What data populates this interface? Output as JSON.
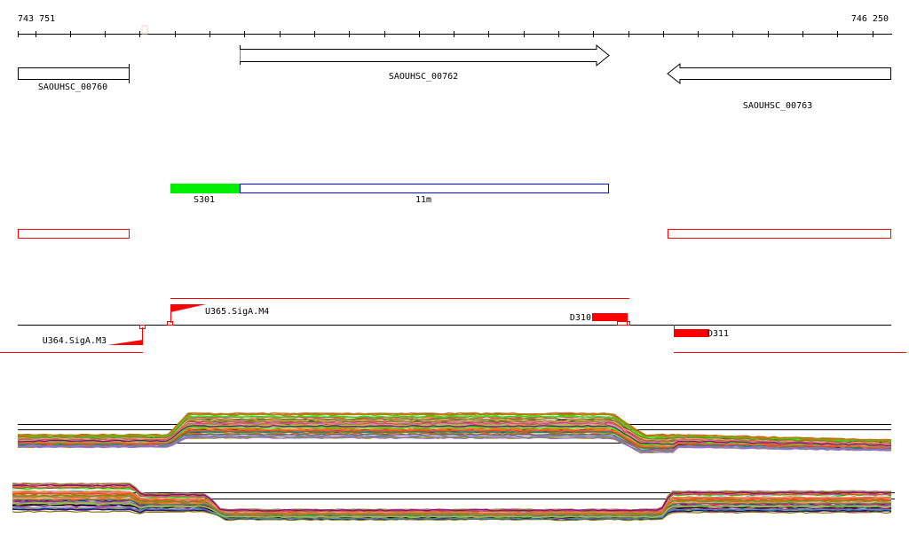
{
  "ruler": {
    "start_label": "743 751",
    "end_label": "746 250"
  },
  "genes": [
    {
      "name": "SAOUHSC_00760",
      "strand": "none"
    },
    {
      "name": "SAOUHSC_00762",
      "strand": "+"
    },
    {
      "name": "SAOUHSC_00763",
      "strand": "-"
    }
  ],
  "transcripts": [
    {
      "name": "S301",
      "color": "#00ee00"
    },
    {
      "name": "11m",
      "color": "#0000ff"
    }
  ],
  "features": {
    "promoters": [
      {
        "name": "U365.SigA.M4",
        "strand": "+"
      },
      {
        "name": "U364.SigA.M3",
        "strand": "-"
      }
    ],
    "terminators": [
      {
        "name": "D310",
        "strand": "+"
      },
      {
        "name": "D311",
        "strand": "-"
      }
    ]
  },
  "colors": {
    "feature": "#ff0000",
    "axis": "#000000",
    "transcript_start": "#00ee00"
  }
}
